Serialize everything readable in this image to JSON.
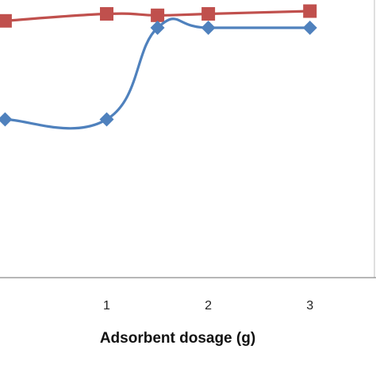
{
  "chart_data": {
    "type": "line",
    "xlabel": "Adsorbent dosage (g)",
    "ylabel": "",
    "title": "",
    "x_ticks": [
      "1",
      "2",
      "3"
    ],
    "xlim": [
      -0.05,
      3.65
    ],
    "ylim": [
      0,
      10
    ],
    "grid": false,
    "series": [
      {
        "color": "#c0504d",
        "marker": "square",
        "smooth": true,
        "x": [
          0.0,
          1.0,
          1.5,
          2.0,
          3.0
        ],
        "y": [
          9.25,
          9.5,
          9.45,
          9.5,
          9.6
        ]
      },
      {
        "color": "#4f81bd",
        "marker": "diamond",
        "smooth": true,
        "x": [
          0.0,
          1.0,
          1.5,
          2.0,
          3.0
        ],
        "y": [
          5.7,
          5.7,
          9.0,
          9.0,
          9.0
        ]
      }
    ]
  }
}
